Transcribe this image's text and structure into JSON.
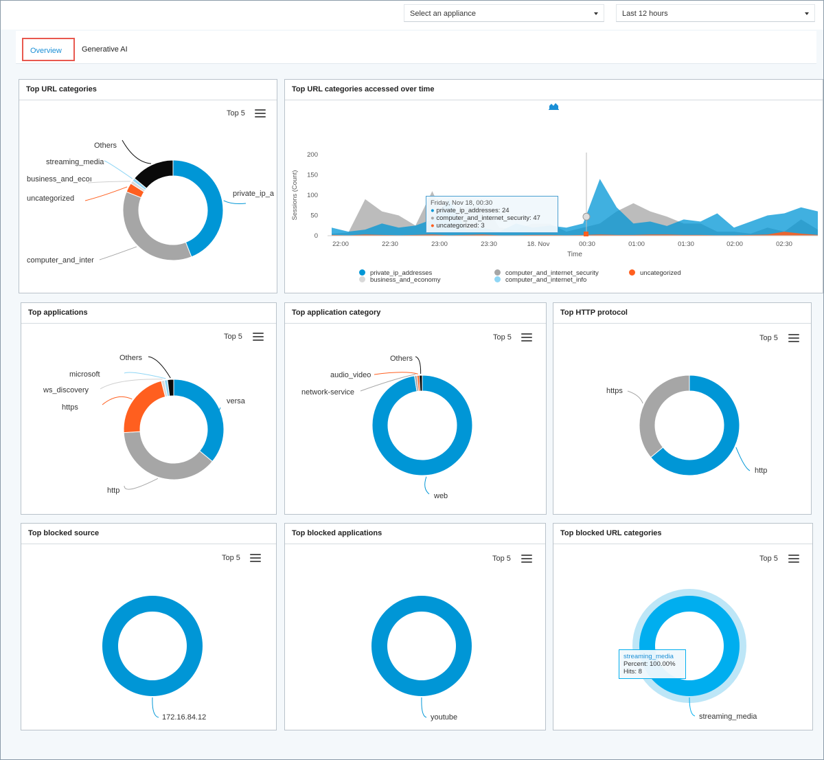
{
  "header": {
    "appliance_select": {
      "value": "Select an appliance"
    },
    "time_select": {
      "value": "Last 12 hours"
    }
  },
  "tabs": [
    {
      "label": "Overview",
      "active": true
    },
    {
      "label": "Generative AI",
      "active": false
    }
  ],
  "topn_label": "Top 5",
  "colors": {
    "blue": "#0096d6",
    "gray": "#a6a6a6",
    "orange": "#ff5f1f",
    "black": "#0a0a0a",
    "light_gray": "#d9d9d9",
    "light_blue": "#8fd6f5",
    "bright_blue": "#00aeef"
  },
  "cards": {
    "url_categories": {
      "title": "Top URL categories",
      "slices": [
        {
          "label": "private_ip_a",
          "color": "#0096d6"
        },
        {
          "label": "computer_and_inter",
          "color": "#a6a6a6"
        },
        {
          "label": "uncategorized",
          "color": "#ff5f1f"
        },
        {
          "label": "business_and_ecoı",
          "color": "#d9d9d9"
        },
        {
          "label": "streaming_media",
          "color": "#8fd6f5"
        },
        {
          "label": "Others",
          "color": "#0a0a0a"
        }
      ]
    },
    "url_over_time": {
      "title": "Top URL categories accessed over time",
      "tooltip": {
        "header": "Friday, Nov 18, 00:30",
        "lines": [
          {
            "text": "private_ip_addresses: 24",
            "color": "#0096d6"
          },
          {
            "text": "computer_and_internet_security: 47",
            "color": "#a6a6a6"
          },
          {
            "text": "uncategorized: 3",
            "color": "#ff5f1f"
          }
        ]
      },
      "legend": [
        {
          "label": "private_ip_addresses",
          "color": "#0096d6"
        },
        {
          "label": "computer_and_internet_security",
          "color": "#a6a6a6"
        },
        {
          "label": "uncategorized",
          "color": "#ff5f1f"
        },
        {
          "label": "business_and_economy",
          "color": "#d9d9d9"
        },
        {
          "label": "computer_and_internet_info",
          "color": "#8fd6f5"
        }
      ]
    },
    "applications": {
      "title": "Top applications",
      "slices": [
        {
          "label": "versa",
          "color": "#0096d6"
        },
        {
          "label": "http",
          "color": "#a6a6a6"
        },
        {
          "label": "https",
          "color": "#ff5f1f"
        },
        {
          "label": "ws_discovery",
          "color": "#d9d9d9"
        },
        {
          "label": "microsoft",
          "color": "#8fd6f5"
        },
        {
          "label": "Others",
          "color": "#0a0a0a"
        }
      ]
    },
    "app_category": {
      "title": "Top application category",
      "slices": [
        {
          "label": "web",
          "color": "#0096d6"
        },
        {
          "label": "network-service",
          "color": "#a6a6a6"
        },
        {
          "label": "audio_video",
          "color": "#ff5f1f"
        },
        {
          "label": "Others",
          "color": "#0a0a0a"
        }
      ]
    },
    "http_protocol": {
      "title": "Top HTTP protocol",
      "slices": [
        {
          "label": "http",
          "color": "#0096d6"
        },
        {
          "label": "https",
          "color": "#a6a6a6"
        }
      ]
    },
    "blocked_source": {
      "title": "Top blocked source",
      "slices": [
        {
          "label": "172.16.84.12",
          "color": "#0096d6"
        }
      ]
    },
    "blocked_apps": {
      "title": "Top blocked applications",
      "slices": [
        {
          "label": "youtube",
          "color": "#0096d6"
        }
      ]
    },
    "blocked_url": {
      "title": "Top blocked URL categories",
      "slices": [
        {
          "label": "streaming_media",
          "color": "#00aeef"
        }
      ],
      "tooltip": {
        "name": "streaming_media",
        "percent": "Percent: 100.00%",
        "hits": "Hits: 8"
      }
    }
  },
  "chart_data": [
    {
      "type": "pie",
      "title": "Top URL categories",
      "labels": [
        "private_ip_a",
        "computer_and_inter",
        "uncategorized",
        "business_and_ecoı",
        "streaming_media",
        "Others"
      ],
      "values": [
        44,
        37,
        3,
        1,
        1,
        14
      ]
    },
    {
      "type": "area",
      "title": "Top URL categories accessed over time",
      "xlabel": "Time",
      "ylabel": "Sessions (Count)",
      "ylim": [
        0,
        200
      ],
      "yticks": [
        0,
        50,
        100,
        150,
        200
      ],
      "xticks": [
        "22:00",
        "22:30",
        "23:00",
        "23:30",
        "18. Nov",
        "00:30",
        "01:00",
        "01:30",
        "02:00",
        "02:30"
      ],
      "x_minutes": [
        0,
        10,
        20,
        30,
        40,
        50,
        60,
        70,
        80,
        90,
        100,
        110,
        120,
        130,
        140,
        150,
        160,
        170,
        180,
        190,
        200,
        210,
        220,
        230,
        240,
        250,
        260,
        270,
        280,
        290
      ],
      "series": [
        {
          "name": "private_ip_addresses",
          "values": [
            20,
            10,
            15,
            30,
            20,
            25,
            40,
            90,
            15,
            20,
            10,
            30,
            20,
            25,
            20,
            30,
            140,
            70,
            30,
            35,
            24,
            40,
            35,
            55,
            20,
            35,
            50,
            55,
            70,
            60
          ]
        },
        {
          "name": "computer_and_internet_security",
          "values": [
            5,
            8,
            90,
            60,
            50,
            25,
            110,
            20,
            70,
            85,
            20,
            15,
            30,
            30,
            10,
            20,
            30,
            60,
            80,
            60,
            47,
            30,
            30,
            10,
            10,
            5,
            20,
            10,
            40,
            15
          ]
        },
        {
          "name": "uncategorized",
          "values": [
            2,
            1,
            3,
            2,
            1,
            2,
            3,
            1,
            2,
            3,
            1,
            1,
            2,
            2,
            1,
            2,
            3,
            2,
            2,
            3,
            3,
            2,
            2,
            1,
            1,
            2,
            3,
            10,
            5,
            2
          ]
        }
      ]
    },
    {
      "type": "pie",
      "title": "Top applications",
      "labels": [
        "versa",
        "http",
        "https",
        "ws_discovery",
        "microsoft",
        "Others"
      ],
      "values": [
        36,
        38,
        22,
        1,
        1,
        2
      ]
    },
    {
      "type": "pie",
      "title": "Top application category",
      "labels": [
        "web",
        "network-service",
        "audio_video",
        "Others"
      ],
      "values": [
        97.5,
        0.8,
        0.7,
        1
      ]
    },
    {
      "type": "pie",
      "title": "Top HTTP protocol",
      "labels": [
        "http",
        "https"
      ],
      "values": [
        64,
        36
      ]
    },
    {
      "type": "pie",
      "title": "Top blocked source",
      "labels": [
        "172.16.84.12"
      ],
      "values": [
        100
      ]
    },
    {
      "type": "pie",
      "title": "Top blocked applications",
      "labels": [
        "youtube"
      ],
      "values": [
        100
      ]
    },
    {
      "type": "pie",
      "title": "Top blocked URL categories",
      "labels": [
        "streaming_media"
      ],
      "values": [
        100
      ]
    }
  ]
}
